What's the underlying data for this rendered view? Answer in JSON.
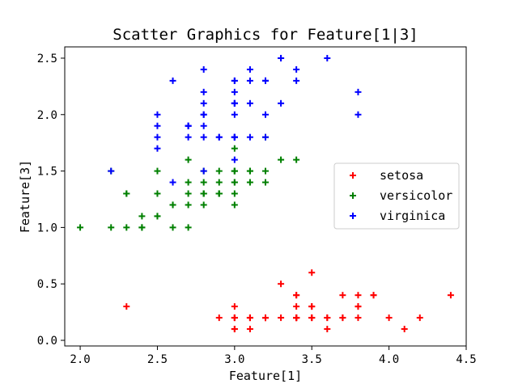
{
  "chart_data": {
    "type": "scatter",
    "title": "Scatter Graphics for Feature[1|3]",
    "xlabel": "Feature[1]",
    "ylabel": "Feature[3]",
    "xlim": [
      1.9,
      4.5
    ],
    "ylim": [
      -0.05,
      2.6
    ],
    "xticks": [
      2.0,
      2.5,
      3.0,
      3.5,
      4.0,
      4.5
    ],
    "yticks": [
      0.0,
      0.5,
      1.0,
      1.5,
      2.0,
      2.5
    ],
    "xtick_labels": [
      "2.0",
      "2.5",
      "3.0",
      "3.5",
      "4.0",
      "4.5"
    ],
    "ytick_labels": [
      "0.0",
      "0.5",
      "1.0",
      "1.5",
      "2.0",
      "2.5"
    ],
    "legend_position": "center-right",
    "grid": false,
    "marker": "plus",
    "series": [
      {
        "name": "setosa",
        "color": "#ff0000",
        "points": [
          [
            3.5,
            0.2
          ],
          [
            3.0,
            0.2
          ],
          [
            3.2,
            0.2
          ],
          [
            3.1,
            0.2
          ],
          [
            3.6,
            0.2
          ],
          [
            3.9,
            0.4
          ],
          [
            3.4,
            0.3
          ],
          [
            3.4,
            0.2
          ],
          [
            2.9,
            0.2
          ],
          [
            3.1,
            0.1
          ],
          [
            3.7,
            0.2
          ],
          [
            3.4,
            0.2
          ],
          [
            3.0,
            0.1
          ],
          [
            3.0,
            0.1
          ],
          [
            4.0,
            0.2
          ],
          [
            4.4,
            0.4
          ],
          [
            3.9,
            0.4
          ],
          [
            3.5,
            0.3
          ],
          [
            3.8,
            0.3
          ],
          [
            3.8,
            0.3
          ],
          [
            3.4,
            0.2
          ],
          [
            3.7,
            0.4
          ],
          [
            3.6,
            0.2
          ],
          [
            3.3,
            0.5
          ],
          [
            3.4,
            0.2
          ],
          [
            3.0,
            0.2
          ],
          [
            3.4,
            0.4
          ],
          [
            3.5,
            0.2
          ],
          [
            3.4,
            0.2
          ],
          [
            3.2,
            0.2
          ],
          [
            3.1,
            0.2
          ],
          [
            3.4,
            0.4
          ],
          [
            4.1,
            0.1
          ],
          [
            4.2,
            0.2
          ],
          [
            3.1,
            0.2
          ],
          [
            3.2,
            0.2
          ],
          [
            3.5,
            0.2
          ],
          [
            3.6,
            0.1
          ],
          [
            3.0,
            0.2
          ],
          [
            3.4,
            0.2
          ],
          [
            3.5,
            0.3
          ],
          [
            2.3,
            0.3
          ],
          [
            3.2,
            0.2
          ],
          [
            3.5,
            0.6
          ],
          [
            3.8,
            0.4
          ],
          [
            3.0,
            0.3
          ],
          [
            3.8,
            0.2
          ],
          [
            3.2,
            0.2
          ],
          [
            3.7,
            0.2
          ],
          [
            3.3,
            0.2
          ]
        ]
      },
      {
        "name": "versicolor",
        "color": "#008000",
        "points": [
          [
            3.2,
            1.4
          ],
          [
            3.2,
            1.5
          ],
          [
            3.1,
            1.5
          ],
          [
            2.3,
            1.3
          ],
          [
            2.8,
            1.5
          ],
          [
            2.8,
            1.3
          ],
          [
            3.3,
            1.6
          ],
          [
            2.4,
            1.0
          ],
          [
            2.9,
            1.3
          ],
          [
            2.7,
            1.4
          ],
          [
            2.0,
            1.0
          ],
          [
            3.0,
            1.5
          ],
          [
            2.2,
            1.0
          ],
          [
            2.9,
            1.4
          ],
          [
            2.9,
            1.3
          ],
          [
            3.1,
            1.4
          ],
          [
            3.0,
            1.5
          ],
          [
            2.7,
            1.0
          ],
          [
            2.2,
            1.5
          ],
          [
            2.5,
            1.1
          ],
          [
            3.2,
            1.8
          ],
          [
            2.8,
            1.3
          ],
          [
            2.5,
            1.5
          ],
          [
            2.8,
            1.2
          ],
          [
            2.9,
            1.3
          ],
          [
            3.0,
            1.4
          ],
          [
            2.8,
            1.4
          ],
          [
            3.0,
            1.7
          ],
          [
            2.9,
            1.5
          ],
          [
            2.6,
            1.0
          ],
          [
            2.4,
            1.1
          ],
          [
            2.4,
            1.0
          ],
          [
            2.7,
            1.2
          ],
          [
            2.7,
            1.6
          ],
          [
            3.0,
            1.5
          ],
          [
            3.4,
            1.6
          ],
          [
            3.1,
            1.5
          ],
          [
            2.3,
            1.3
          ],
          [
            3.0,
            1.3
          ],
          [
            2.5,
            1.3
          ],
          [
            2.6,
            1.2
          ],
          [
            3.0,
            1.4
          ],
          [
            2.6,
            1.2
          ],
          [
            2.3,
            1.0
          ],
          [
            2.7,
            1.3
          ],
          [
            3.0,
            1.2
          ],
          [
            2.9,
            1.3
          ],
          [
            2.9,
            1.3
          ],
          [
            2.5,
            1.1
          ],
          [
            2.8,
            1.3
          ]
        ]
      },
      {
        "name": "virginica",
        "color": "#0000ff",
        "points": [
          [
            3.3,
            2.5
          ],
          [
            2.7,
            1.9
          ],
          [
            3.0,
            2.1
          ],
          [
            2.9,
            1.8
          ],
          [
            3.0,
            2.2
          ],
          [
            3.0,
            2.1
          ],
          [
            2.5,
            1.7
          ],
          [
            2.9,
            1.8
          ],
          [
            2.5,
            1.8
          ],
          [
            3.6,
            2.5
          ],
          [
            3.2,
            2.0
          ],
          [
            2.7,
            1.9
          ],
          [
            3.0,
            2.1
          ],
          [
            2.5,
            2.0
          ],
          [
            2.8,
            2.4
          ],
          [
            3.2,
            2.3
          ],
          [
            3.0,
            1.8
          ],
          [
            3.8,
            2.2
          ],
          [
            2.6,
            2.3
          ],
          [
            2.2,
            1.5
          ],
          [
            3.2,
            2.3
          ],
          [
            2.8,
            2.0
          ],
          [
            2.8,
            2.0
          ],
          [
            2.7,
            1.8
          ],
          [
            3.3,
            2.1
          ],
          [
            3.2,
            1.8
          ],
          [
            2.8,
            1.8
          ],
          [
            3.0,
            1.8
          ],
          [
            2.8,
            2.1
          ],
          [
            3.0,
            1.6
          ],
          [
            2.8,
            1.9
          ],
          [
            3.8,
            2.0
          ],
          [
            2.8,
            2.2
          ],
          [
            2.8,
            1.5
          ],
          [
            2.6,
            1.4
          ],
          [
            3.0,
            2.3
          ],
          [
            3.4,
            2.4
          ],
          [
            3.1,
            1.8
          ],
          [
            3.0,
            1.8
          ],
          [
            3.1,
            2.1
          ],
          [
            3.1,
            2.4
          ],
          [
            3.1,
            2.3
          ],
          [
            2.7,
            1.9
          ],
          [
            3.2,
            2.3
          ],
          [
            3.3,
            2.5
          ],
          [
            3.0,
            2.3
          ],
          [
            2.5,
            1.9
          ],
          [
            3.0,
            2.0
          ],
          [
            3.4,
            2.3
          ],
          [
            3.0,
            1.8
          ]
        ]
      }
    ]
  }
}
